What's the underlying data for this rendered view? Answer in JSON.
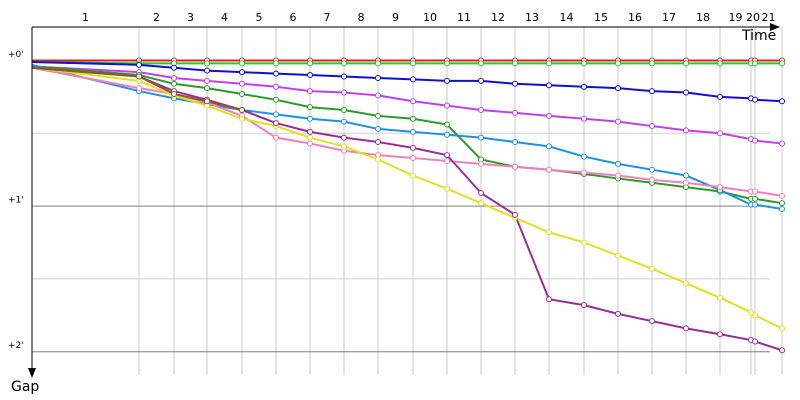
{
  "chart_data": {
    "type": "line",
    "x_label": "Time",
    "y_label": "Gap",
    "x": [
      0,
      107,
      142,
      175,
      210,
      244,
      278,
      312,
      346,
      381,
      415,
      449,
      483,
      517,
      552,
      586,
      620,
      654,
      688,
      719,
      723,
      750
    ],
    "lap_labels": [
      1,
      2,
      3,
      4,
      5,
      6,
      7,
      8,
      9,
      10,
      11,
      12,
      13,
      14,
      15,
      16,
      17,
      18,
      19,
      20,
      21
    ],
    "xlim": [
      0,
      768
    ],
    "ylim": [
      -0.23,
      2.16
    ],
    "yticks": [
      {
        "value": 0,
        "label": "+0'"
      },
      {
        "value": 1,
        "label": "+1'"
      },
      {
        "value": 2,
        "label": "+2'"
      }
    ],
    "yminor": [
      0.5,
      1.5
    ],
    "grid": true,
    "series": [
      {
        "color": "#e02020",
        "values": [
          0,
          0,
          0,
          0,
          0,
          0,
          0,
          0,
          0,
          0,
          0,
          0,
          0,
          0,
          0,
          0,
          0,
          0,
          0,
          0,
          0,
          0
        ]
      },
      {
        "color": "#30c030",
        "values": [
          0.01,
          0.02,
          0.02,
          0.02,
          0.02,
          0.02,
          0.02,
          0.02,
          0.02,
          0.02,
          0.02,
          0.02,
          0.02,
          0.02,
          0.02,
          0.02,
          0.02,
          0.02,
          0.02,
          0.02,
          0.02,
          0.02
        ]
      },
      {
        "color": "#1010d0",
        "values": [
          0.01,
          0.03,
          0.05,
          0.07,
          0.08,
          0.09,
          0.1,
          0.11,
          0.12,
          0.13,
          0.14,
          0.14,
          0.16,
          0.17,
          0.18,
          0.19,
          0.21,
          0.22,
          0.25,
          0.26,
          0.27,
          0.28
        ]
      },
      {
        "color": "#c040f0",
        "values": [
          0.04,
          0.08,
          0.12,
          0.14,
          0.16,
          0.18,
          0.21,
          0.22,
          0.24,
          0.28,
          0.31,
          0.34,
          0.36,
          0.38,
          0.4,
          0.42,
          0.45,
          0.48,
          0.5,
          0.54,
          0.55,
          0.57
        ]
      },
      {
        "color": "#2a9a2a",
        "values": [
          0.04,
          0.1,
          0.16,
          0.19,
          0.23,
          0.27,
          0.32,
          0.34,
          0.38,
          0.4,
          0.44,
          0.68,
          0.73,
          0.75,
          0.78,
          0.81,
          0.84,
          0.87,
          0.9,
          0.95,
          0.95,
          0.98
        ]
      },
      {
        "color": "#2090e0",
        "values": [
          0.03,
          0.21,
          0.26,
          0.3,
          0.34,
          0.37,
          0.4,
          0.42,
          0.47,
          0.49,
          0.51,
          0.53,
          0.56,
          0.59,
          0.66,
          0.71,
          0.75,
          0.79,
          0.89,
          0.99,
          0.99,
          1.02
        ]
      },
      {
        "color": "#f080b8",
        "values": [
          0.05,
          0.19,
          0.23,
          0.29,
          0.38,
          0.53,
          0.57,
          0.62,
          0.65,
          0.67,
          0.69,
          0.71,
          0.73,
          0.75,
          0.77,
          0.79,
          0.82,
          0.84,
          0.87,
          0.9,
          0.9,
          0.93
        ]
      },
      {
        "color": "#e0e020",
        "values": [
          0.05,
          0.14,
          0.24,
          0.31,
          0.4,
          0.45,
          0.53,
          0.59,
          0.68,
          0.79,
          0.88,
          0.98,
          1.08,
          1.18,
          1.25,
          1.34,
          1.43,
          1.53,
          1.63,
          1.73,
          1.75,
          1.84
        ]
      },
      {
        "color": "#9a2d9a",
        "values": [
          0.05,
          0.11,
          0.21,
          0.27,
          0.34,
          0.43,
          0.49,
          0.53,
          0.56,
          0.6,
          0.65,
          0.91,
          1.06,
          1.64,
          1.68,
          1.74,
          1.79,
          1.84,
          1.88,
          1.92,
          1.93,
          1.99
        ]
      },
      {
        "color": "#8a5a2a",
        "values": [
          0.05,
          0.11,
          0.23,
          0.28,
          0.34,
          null,
          null,
          null,
          null,
          null,
          null,
          null,
          null,
          null,
          null,
          null,
          null,
          null,
          null,
          null,
          null,
          null
        ]
      }
    ]
  }
}
